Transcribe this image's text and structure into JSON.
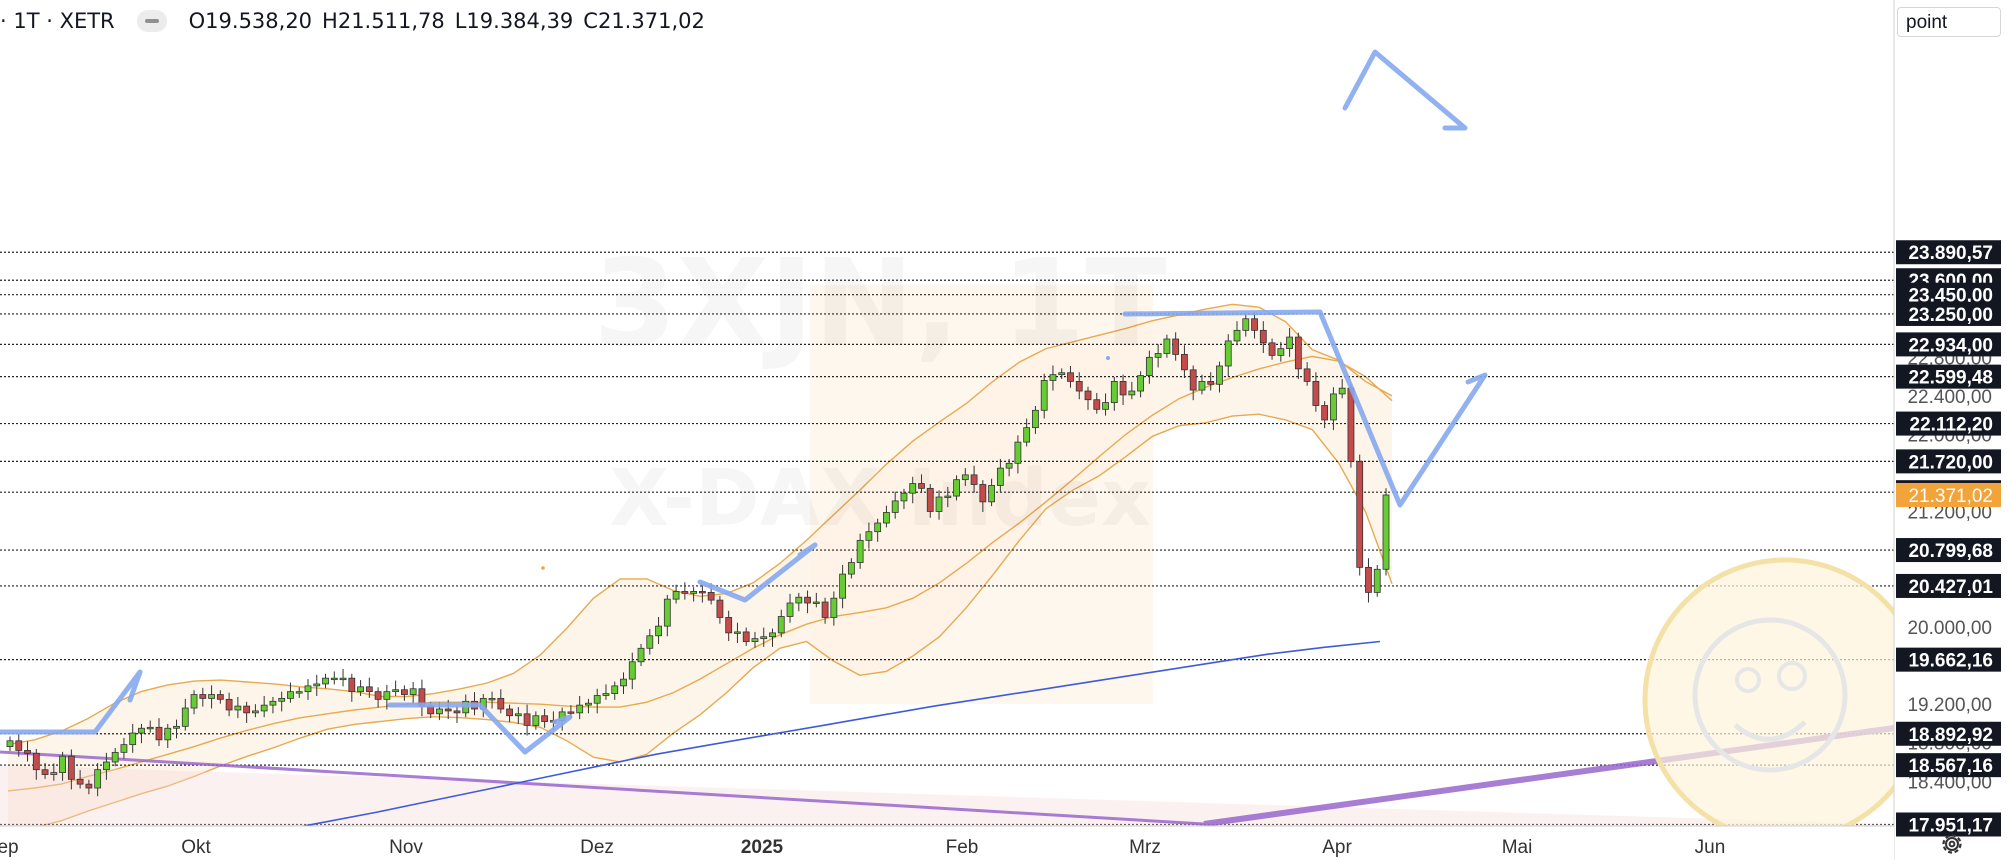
{
  "header": {
    "symbol": "· 1T · XETR",
    "open": "O19.538,20",
    "high": "H21.511,78",
    "low": "L19.384,39",
    "close": "C21.371,02"
  },
  "watermark": {
    "ticker": "3XJN, 1T",
    "name": "X-DAX Index"
  },
  "unit_label": "point",
  "colors": {
    "up": "#66cc33",
    "down": "#c44b4b",
    "bollinger": "#e8a94f",
    "band_fill": "#fdf1e3",
    "ma": "#3f5bd9",
    "trend": "#9966cc",
    "sketch": "#86a8ee",
    "current": "#f2a33a"
  },
  "chart_data": {
    "type": "candlestick",
    "x_axis": {
      "labels": [
        "ep",
        "Okt",
        "Nov",
        "Dez",
        "2025",
        "Feb",
        "Mrz",
        "Apr",
        "Mai",
        "Jun"
      ]
    },
    "y_axis": {
      "range": [
        17800,
        24200
      ],
      "ticks": [
        "23.890,57",
        "23.600,00",
        "23.450,00",
        "23.250,00",
        "22.934,00",
        "22.800,00",
        "22.599,48",
        "22.400,00",
        "22.112,20",
        "22.000,00",
        "21.720,00",
        "21.400,43",
        "21.371,02",
        "21.200,00",
        "20.799,68",
        "20.427,01",
        "20.000,00",
        "19.662,16",
        "19.200,00",
        "18.892,92",
        "18.800,00",
        "18.567,16",
        "18.400,00",
        "17.951,17"
      ]
    },
    "horizontal_levels": [
      23890.57,
      23600,
      23450,
      23250,
      22934,
      22599.48,
      22112.2,
      21720,
      21400.43,
      20799.68,
      20427.01,
      19662.16,
      18892.92,
      18567.16,
      17951.17
    ],
    "level_labels": [
      "23.890,57",
      "23.600,00",
      "23.450,00",
      "23.250,00",
      "22.934,00",
      "22.599,48",
      "22.112,20",
      "21.720,00",
      "21.400,43",
      "20.799,68",
      "20.427,01",
      "19.662,16",
      "18.892,92",
      "18.567,16",
      "17.951,17"
    ],
    "plain_ticks": [
      {
        "value": 22800,
        "label": "22.800,00"
      },
      {
        "value": 22400,
        "label": "22.400,00"
      },
      {
        "value": 22000,
        "label": "22.000,00"
      },
      {
        "value": 21200,
        "label": "21.200,00"
      },
      {
        "value": 20000,
        "label": "20.000,00"
      },
      {
        "value": 19200,
        "label": "19.200,00"
      },
      {
        "value": 18800,
        "label": "18.800,00"
      },
      {
        "value": 18400,
        "label": "18.400,00"
      }
    ],
    "current_price": {
      "value": 21371.02,
      "label": "21.371,02"
    },
    "series_close": [
      18820,
      18720,
      18690,
      18520,
      18470,
      18490,
      18660,
      18420,
      18370,
      18330,
      18520,
      18600,
      18700,
      18780,
      18900,
      18950,
      18960,
      18830,
      18950,
      18970,
      19160,
      19300,
      19260,
      19300,
      19250,
      19140,
      19180,
      19110,
      19130,
      19190,
      19230,
      19260,
      19330,
      19330,
      19390,
      19410,
      19470,
      19470,
      19470,
      19330,
      19380,
      19330,
      19250,
      19330,
      19350,
      19300,
      19360,
      19180,
      19100,
      19150,
      19130,
      19110,
      19230,
      19150,
      19260,
      19260,
      19150,
      19080,
      19100,
      18980,
      19080,
      19020,
      19030,
      19120,
      19110,
      19190,
      19210,
      19290,
      19310,
      19390,
      19460,
      19640,
      19780,
      19910,
      20010,
      20290,
      20370,
      20350,
      20370,
      20360,
      20280,
      20100,
      19940,
      19950,
      19850,
      19880,
      19900,
      19940,
      20110,
      20250,
      20310,
      20250,
      20260,
      20100,
      20300,
      20550,
      20670,
      20900,
      20990,
      21080,
      21190,
      21310,
      21390,
      21490,
      21440,
      21200,
      21350,
      21360,
      21530,
      21580,
      21480,
      21300,
      21470,
      21650,
      21700,
      21920,
      22070,
      22250,
      22560,
      22620,
      22640,
      22550,
      22450,
      22360,
      22260,
      22330,
      22550,
      22410,
      22450,
      22610,
      22800,
      22840,
      22990,
      22830,
      22670,
      22460,
      22550,
      22520,
      22710,
      22970,
      23080,
      23200,
      23080,
      22950,
      22820,
      22890,
      23010,
      22680,
      22550,
      22300,
      22150,
      22420,
      22480,
      21720,
      20620,
      20360,
      20600,
      21371
    ],
    "bollinger": {
      "middle": [
        18300,
        18330,
        18370,
        18450,
        18520,
        18600,
        18680,
        18760,
        18850,
        18930,
        19000,
        19060,
        19100,
        19140,
        19170,
        19200,
        19220,
        19220,
        19220,
        19210,
        19200,
        19180,
        19170,
        19170,
        19220,
        19320,
        19460,
        19620,
        19780,
        19920,
        20030,
        20110,
        20150,
        20200,
        20300,
        20460,
        20660,
        20880,
        21080,
        21300,
        21530,
        21770,
        22000,
        22200,
        22370,
        22490,
        22590,
        22680,
        22750,
        22810,
        22760,
        22600,
        22350
      ],
      "upper": [
        18780,
        18830,
        18920,
        19050,
        19210,
        19330,
        19400,
        19440,
        19450,
        19430,
        19410,
        19380,
        19360,
        19330,
        19280,
        19280,
        19310,
        19360,
        19420,
        19520,
        19710,
        19990,
        20300,
        20500,
        20500,
        20380,
        20320,
        20350,
        20460,
        20660,
        20900,
        21160,
        21420,
        21690,
        21930,
        22130,
        22320,
        22550,
        22750,
        22890,
        22960,
        23030,
        23100,
        23180,
        23240,
        23300,
        23350,
        23320,
        23170,
        22880,
        22770,
        22550,
        22400
      ],
      "lower": [
        17880,
        17920,
        17990,
        18090,
        18180,
        18270,
        18350,
        18450,
        18560,
        18660,
        18750,
        18850,
        18940,
        18990,
        19020,
        19050,
        19070,
        19060,
        19040,
        19010,
        18960,
        18820,
        18650,
        18600,
        18680,
        18900,
        19090,
        19320,
        19580,
        19780,
        19850,
        19650,
        19500,
        19540,
        19700,
        19900,
        20200,
        20540,
        20900,
        21230,
        21420,
        21570,
        21770,
        21980,
        22090,
        22120,
        22190,
        22210,
        22150,
        22050,
        21700,
        21200,
        20450
      ]
    },
    "moving_average": [
      17780,
      17860,
      17970,
      18080,
      18200,
      18320,
      18440,
      18560,
      18680,
      18780,
      18880,
      18980,
      19080,
      19180,
      19270,
      19360,
      19450,
      19540,
      19630,
      19720,
      19790,
      19850
    ],
    "trendlines": [
      {
        "from": [
          0,
          18570
        ],
        "to": [
          181,
          17900
        ]
      },
      {
        "from": [
          120,
          17800
        ],
        "to": [
          205,
          18800
        ]
      }
    ],
    "fib_zone": {
      "start": 114,
      "end": 163,
      "low": 19200,
      "high": 23550
    }
  }
}
